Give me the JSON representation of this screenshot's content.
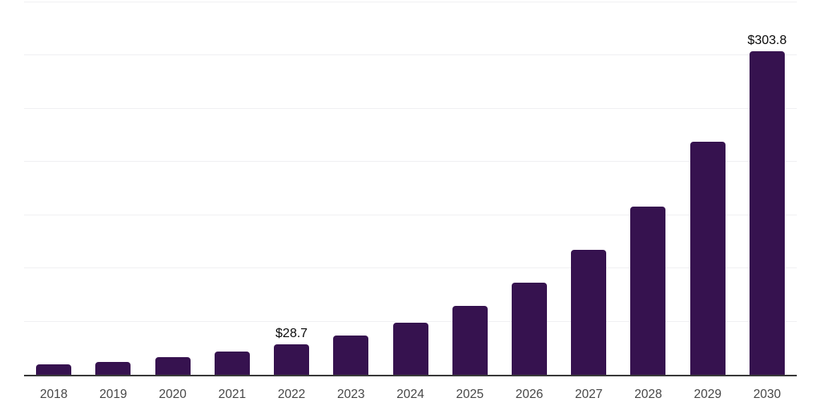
{
  "chart_data": {
    "type": "bar",
    "title": "",
    "xlabel": "",
    "ylabel": "",
    "categories": [
      "2018",
      "2019",
      "2020",
      "2021",
      "2022",
      "2023",
      "2024",
      "2025",
      "2026",
      "2027",
      "2028",
      "2029",
      "2030"
    ],
    "values": [
      9.5,
      12.0,
      16.4,
      21.6,
      28.7,
      36.6,
      49.2,
      64.9,
      86.6,
      117.2,
      158.2,
      218.7,
      303.8
    ],
    "value_labels": [
      "",
      "",
      "",
      "",
      "$28.7",
      "",
      "",
      "",
      "",
      "",
      "",
      "",
      "$303.8"
    ],
    "ylim": [
      0,
      350
    ],
    "gridline_step": 50,
    "grid": true,
    "legend": "none",
    "colors": {
      "bar": "#36124F",
      "gridline": "#f0f0f2",
      "baseline": "#3a3a3a",
      "value_label": "#0a0a0a",
      "axis_label": "#474747",
      "background": "#ffffff"
    }
  }
}
